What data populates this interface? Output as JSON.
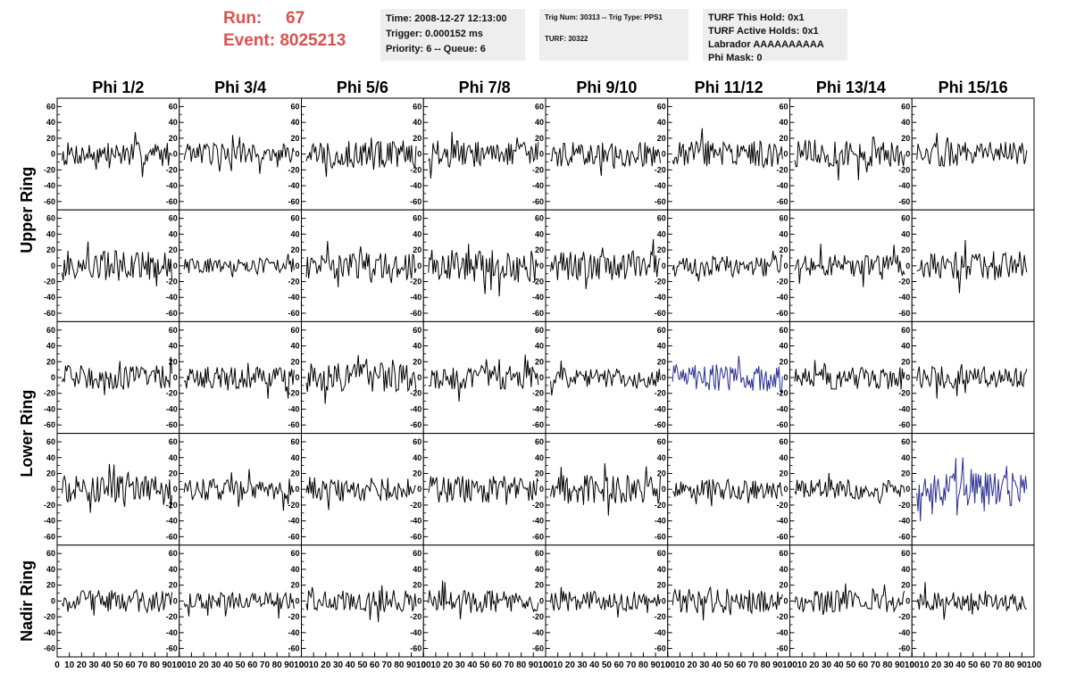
{
  "header": {
    "run_label": "Run:",
    "run_value": "67",
    "event_label": "Event:",
    "event_value": "8025213"
  },
  "info": {
    "time": "Time: 2008-12-27 12:13:00",
    "trigger": "Trigger: 0.000152 ms",
    "priority": "Priority: 6 -- Queue: 6",
    "trig_num": "Trig Num: 30313 -- Trig Type: PPS1",
    "turf": "TURF: 30322",
    "turf_hold": "TURF This Hold: 0x1",
    "turf_active": "TURF Active Holds: 0x1",
    "labrador": "Labrador AAAAAAAAAA",
    "phi_mask": "Phi Mask: 0"
  },
  "chart_data": {
    "type": "line",
    "columns": [
      "Phi 1/2",
      "Phi 3/4",
      "Phi 5/6",
      "Phi 7/8",
      "Phi 9/10",
      "Phi 11/12",
      "Phi 13/14",
      "Phi 15/16"
    ],
    "row_groups": [
      {
        "label": "Upper Ring",
        "rows": [
          0,
          1
        ]
      },
      {
        "label": "Lower Ring",
        "rows": [
          2,
          3
        ]
      },
      {
        "label": "Nadir Ring",
        "rows": [
          4
        ]
      }
    ],
    "ylim": [
      -65,
      65
    ],
    "xlim": [
      0,
      100
    ],
    "yticks": [
      60,
      40,
      20,
      0,
      -20,
      -40,
      -60
    ],
    "xticks": [
      0,
      10,
      20,
      30,
      40,
      50,
      60,
      70,
      80,
      90,
      100
    ],
    "samples": 94,
    "colors": {
      "normal": "#000000",
      "highlight": "#2b2f8f"
    },
    "highlighted_panels": [
      {
        "row": 2,
        "col": 5
      },
      {
        "row": 3,
        "col": 7
      }
    ],
    "panel_amplitudes": [
      [
        11,
        10,
        13,
        12,
        11,
        12,
        12,
        11
      ],
      [
        14,
        7,
        12,
        15,
        13,
        10,
        10,
        13
      ],
      [
        11,
        10,
        13,
        11,
        9,
        12,
        11,
        10
      ],
      [
        12,
        10,
        11,
        12,
        13,
        9,
        9,
        15
      ],
      [
        10,
        8,
        10,
        10,
        9,
        11,
        10,
        9
      ]
    ]
  }
}
